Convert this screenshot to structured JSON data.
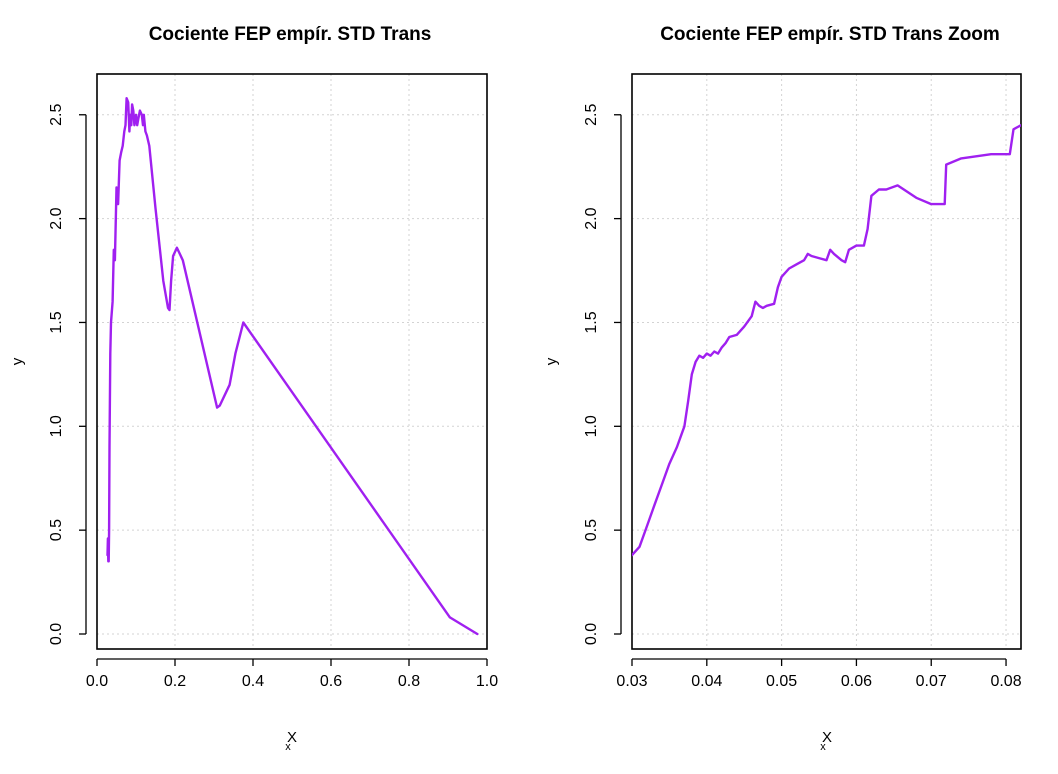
{
  "chart_data": [
    {
      "type": "line",
      "title": "Cociente FEP empír. STD Trans",
      "xlabel": "x",
      "xsublabel": "X",
      "ylabel": "y",
      "xlim": [
        0,
        1.0
      ],
      "ylim": [
        0,
        2.6
      ],
      "xticks": [
        0.0,
        0.2,
        0.4,
        0.6,
        0.8,
        1.0
      ],
      "xtick_labels": [
        "0.0",
        "0.2",
        "0.4",
        "0.6",
        "0.8",
        "1.0"
      ],
      "yticks": [
        0.0,
        0.5,
        1.0,
        1.5,
        2.0,
        2.5
      ],
      "ytick_labels": [
        "0.0",
        "0.5",
        "1.0",
        "1.5",
        "2.0",
        "2.5"
      ],
      "grid": true,
      "color": "#a020f0",
      "series": [
        {
          "x": [
            0.027,
            0.028,
            0.029,
            0.03,
            0.031,
            0.032,
            0.034,
            0.036,
            0.04,
            0.043,
            0.046,
            0.05,
            0.054,
            0.058,
            0.062,
            0.066,
            0.07,
            0.073,
            0.076,
            0.08,
            0.083,
            0.085,
            0.088,
            0.09,
            0.093,
            0.096,
            0.1,
            0.103,
            0.106,
            0.11,
            0.115,
            0.118,
            0.12,
            0.124,
            0.128,
            0.134,
            0.15,
            0.17,
            0.182,
            0.186,
            0.19,
            0.195,
            0.205,
            0.22,
            0.308,
            0.315,
            0.34,
            0.355,
            0.375,
            0.905,
            0.975
          ],
          "y": [
            0.38,
            0.46,
            0.35,
            0.35,
            0.5,
            0.9,
            1.35,
            1.5,
            1.6,
            1.85,
            1.8,
            2.15,
            2.07,
            2.28,
            2.32,
            2.35,
            2.42,
            2.45,
            2.58,
            2.56,
            2.42,
            2.5,
            2.45,
            2.55,
            2.52,
            2.45,
            2.5,
            2.45,
            2.48,
            2.52,
            2.5,
            2.45,
            2.5,
            2.42,
            2.4,
            2.35,
            2.05,
            1.7,
            1.57,
            1.56,
            1.7,
            1.82,
            1.86,
            1.8,
            1.09,
            1.1,
            1.2,
            1.35,
            1.5,
            0.08,
            0.0
          ]
        }
      ]
    },
    {
      "type": "line",
      "title": "Cociente FEP empír. STD Trans Zoom",
      "xlabel": "x",
      "xsublabel": "X",
      "ylabel": "y",
      "xlim": [
        0.03,
        0.082
      ],
      "ylim": [
        0,
        2.6
      ],
      "xticks": [
        0.03,
        0.04,
        0.05,
        0.06,
        0.07,
        0.08
      ],
      "xtick_labels": [
        "0.03",
        "0.04",
        "0.05",
        "0.06",
        "0.07",
        "0.08"
      ],
      "yticks": [
        0.0,
        0.5,
        1.0,
        1.5,
        2.0,
        2.5
      ],
      "ytick_labels": [
        "0.0",
        "0.5",
        "1.0",
        "1.5",
        "2.0",
        "2.5"
      ],
      "grid": true,
      "color": "#a020f0",
      "series": [
        {
          "x": [
            0.03,
            0.031,
            0.032,
            0.033,
            0.034,
            0.035,
            0.036,
            0.037,
            0.0375,
            0.038,
            0.0385,
            0.039,
            0.0395,
            0.04,
            0.0405,
            0.041,
            0.0415,
            0.042,
            0.0425,
            0.043,
            0.044,
            0.045,
            0.046,
            0.0465,
            0.047,
            0.0475,
            0.048,
            0.049,
            0.0495,
            0.05,
            0.051,
            0.052,
            0.053,
            0.0535,
            0.054,
            0.055,
            0.056,
            0.0565,
            0.057,
            0.058,
            0.0585,
            0.059,
            0.06,
            0.0605,
            0.061,
            0.0615,
            0.062,
            0.063,
            0.064,
            0.0655,
            0.068,
            0.07,
            0.071,
            0.0718,
            0.072,
            0.074,
            0.078,
            0.0805,
            0.081,
            0.082
          ],
          "y": [
            0.38,
            0.42,
            0.52,
            0.62,
            0.72,
            0.82,
            0.9,
            1.0,
            1.12,
            1.25,
            1.31,
            1.34,
            1.33,
            1.35,
            1.34,
            1.36,
            1.35,
            1.38,
            1.4,
            1.43,
            1.44,
            1.48,
            1.53,
            1.6,
            1.58,
            1.57,
            1.58,
            1.59,
            1.67,
            1.72,
            1.76,
            1.78,
            1.8,
            1.83,
            1.82,
            1.81,
            1.8,
            1.85,
            1.83,
            1.8,
            1.79,
            1.85,
            1.87,
            1.87,
            1.87,
            1.95,
            2.11,
            2.14,
            2.14,
            2.16,
            2.1,
            2.07,
            2.07,
            2.07,
            2.26,
            2.29,
            2.31,
            2.31,
            2.43,
            2.45
          ]
        }
      ]
    }
  ]
}
